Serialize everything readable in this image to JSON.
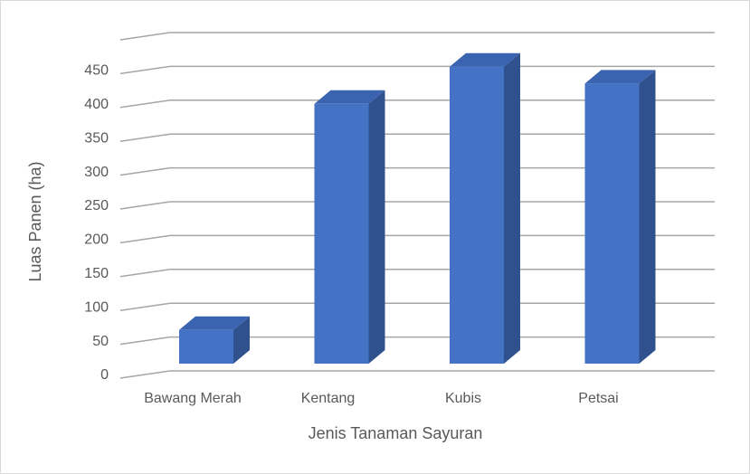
{
  "chart_data": {
    "type": "bar3d",
    "x_label": "Jenis Tanaman Sayuran",
    "y_label": "Luas Panen (ha)",
    "categories": [
      "Bawang Merah",
      "Kentang",
      "Kubis",
      "Petsai"
    ],
    "values": [
      50,
      385,
      440,
      415
    ],
    "color": "#4472c4",
    "ylim": [
      0,
      500
    ],
    "yticks": [
      0,
      50,
      100,
      150,
      200,
      250,
      300,
      350,
      400,
      450
    ],
    "grid": true
  }
}
